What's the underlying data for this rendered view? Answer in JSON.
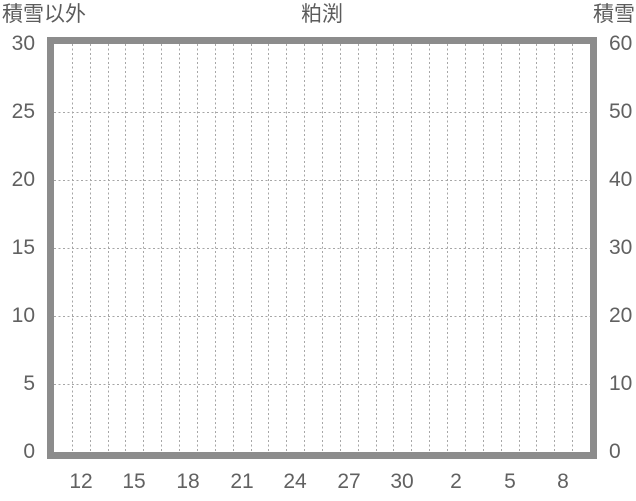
{
  "header": {
    "left_axis_title": "積雪以外",
    "chart_title": "粕渕",
    "right_axis_title": "積雪"
  },
  "chart_data": {
    "type": "line",
    "title": "粕渕",
    "subtitle": "",
    "series": [],
    "left_axis": {
      "title": "積雪以外",
      "min": 0,
      "max": 30,
      "ticks": [
        0,
        5,
        10,
        15,
        20,
        25,
        30
      ]
    },
    "right_axis": {
      "title": "積雪",
      "min": 0,
      "max": 60,
      "ticks": [
        0,
        10,
        20,
        30,
        40,
        50,
        60
      ]
    },
    "x_axis": {
      "columns": 30,
      "tick_labels": [
        "12",
        "15",
        "18",
        "21",
        "24",
        "27",
        "30",
        "2",
        "5",
        "8"
      ],
      "first_tick_column": 1,
      "tick_interval": 3
    },
    "grid": {
      "style": "dashed",
      "vertical_lines_per_column": true,
      "horizontal_lines_at_left_ticks": true
    },
    "legend": null
  },
  "colors": {
    "background": "#ffffff",
    "plot_border": "#8c8c8c",
    "grid": "#a6a6a6",
    "text": "#5c5c5c"
  }
}
